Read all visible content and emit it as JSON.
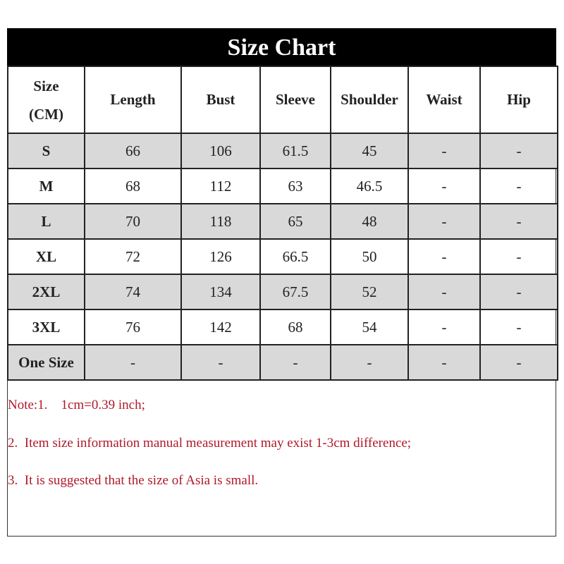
{
  "title": "Size Chart",
  "headers": [
    "Size\n(CM)",
    "Length",
    "Bust",
    "Sleeve",
    "Shoulder",
    "Waist",
    "Hip"
  ],
  "rows": [
    [
      "S",
      "66",
      "106",
      "61.5",
      "45",
      "-",
      "-"
    ],
    [
      "M",
      "68",
      "112",
      "63",
      "46.5",
      "-",
      "-"
    ],
    [
      "L",
      "70",
      "118",
      "65",
      "48",
      "-",
      "-"
    ],
    [
      "XL",
      "72",
      "126",
      "66.5",
      "50",
      "-",
      "-"
    ],
    [
      "2XL",
      "74",
      "134",
      "67.5",
      "52",
      "-",
      "-"
    ],
    [
      "3XL",
      "76",
      "142",
      "68",
      "54",
      "-",
      "-"
    ],
    [
      "One Size",
      "-",
      "-",
      "-",
      "-",
      "-",
      "-"
    ]
  ],
  "notes": [
    "Note:1.    1cm=0.39 inch;",
    "2.  Item size information manual measurement may exist 1-3cm difference;",
    "3.  It is suggested that the size of Asia is small."
  ],
  "colors": {
    "header_bg": "#000000",
    "row_gray": "#d9d9d9",
    "note_text": "#b0182a"
  }
}
